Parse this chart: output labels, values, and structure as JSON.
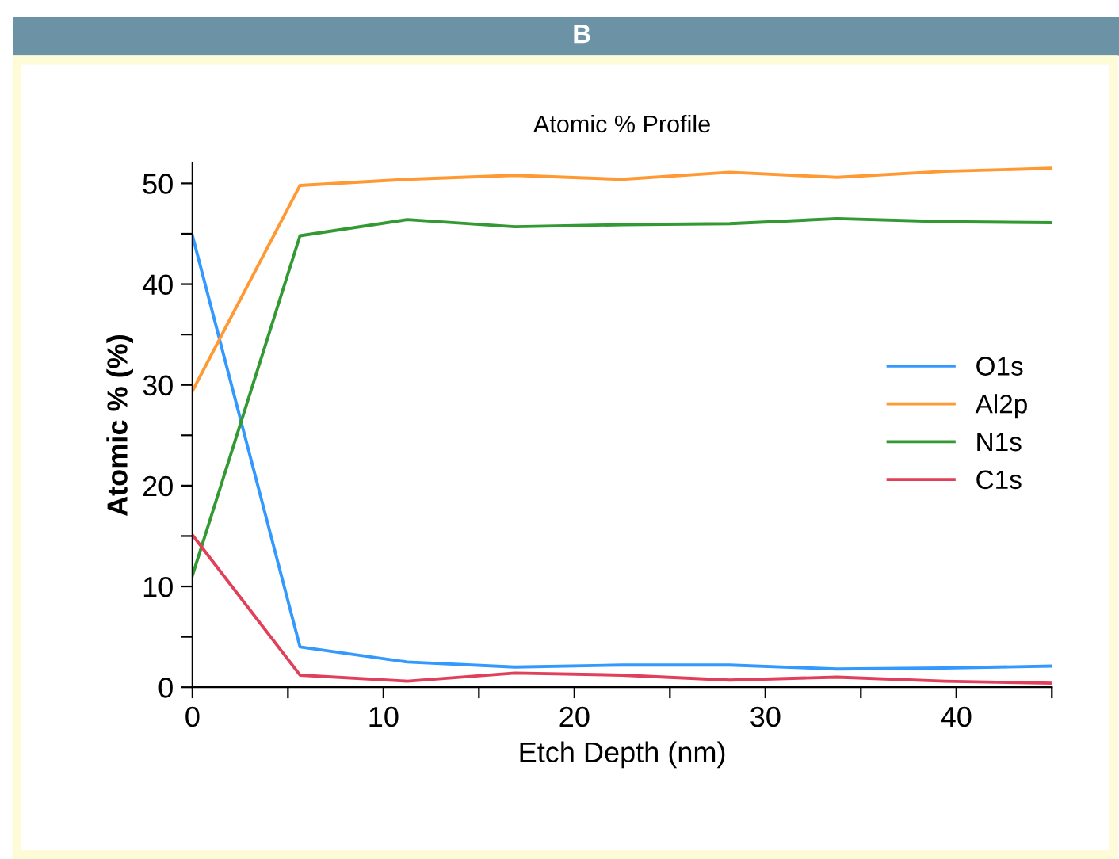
{
  "chart_data": {
    "type": "line",
    "title": "Atomic % Profile",
    "xlabel": "Etch Depth (nm)",
    "ylabel": "Atomic % (%)",
    "annotations": [
      "B"
    ],
    "x": [
      0,
      5.63,
      11.25,
      16.88,
      22.5,
      28.13,
      33.75,
      39.38,
      45
    ],
    "series": [
      {
        "name": "O1s",
        "color": "#3399ff",
        "values": [
          44.8,
          4.0,
          2.5,
          2.0,
          2.2,
          2.2,
          1.8,
          1.9,
          2.1
        ]
      },
      {
        "name": "Al2p",
        "color": "#ff9933",
        "values": [
          29.4,
          49.8,
          50.4,
          50.8,
          50.4,
          51.1,
          50.6,
          51.2,
          51.5
        ]
      },
      {
        "name": "N1s",
        "color": "#339933",
        "values": [
          11.1,
          44.8,
          46.4,
          45.7,
          45.9,
          46.0,
          46.5,
          46.2,
          46.1
        ]
      },
      {
        "name": "C1s",
        "color": "#e0405a",
        "values": [
          15.1,
          1.2,
          0.6,
          1.4,
          1.2,
          0.7,
          1.0,
          0.6,
          0.4
        ]
      }
    ],
    "xlim": [
      0,
      45
    ],
    "ylim": [
      0,
      52
    ],
    "xticks": [
      0,
      {
        "value": 5,
        "label": null
      },
      10,
      {
        "value": 15,
        "label": null
      },
      20,
      {
        "value": 25,
        "label": null
      },
      30,
      {
        "value": 35,
        "label": null
      },
      40,
      {
        "value": 45,
        "label": null
      }
    ],
    "yticks": [
      0,
      {
        "value": 5,
        "label": null
      },
      10,
      {
        "value": 15,
        "label": null
      },
      20,
      {
        "value": 25,
        "label": null
      },
      30,
      {
        "value": 35,
        "label": null
      },
      40,
      {
        "value": 45,
        "label": null
      },
      50
    ],
    "grid": false,
    "legend": "right",
    "marker": "none",
    "line_style": "solid"
  }
}
